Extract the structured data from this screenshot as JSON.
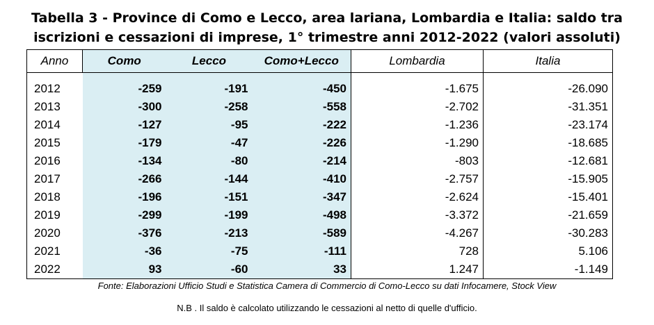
{
  "title_line1": "Tabella 3 - Province di Como e Lecco, area lariana, Lombardia e Italia: saldo tra",
  "title_line2": "iscrizioni e cessazioni di imprese, 1° trimestre anni 2012-2022 (valori assoluti)",
  "headers": [
    "Anno",
    "Como",
    "Lecco",
    "Como+Lecco",
    "Lombardia",
    "Italia"
  ],
  "rows": [
    [
      "2012",
      "-259",
      "-191",
      "-450",
      "-1.675",
      "-26.090"
    ],
    [
      "2013",
      "-300",
      "-258",
      "-558",
      "-2.702",
      "-31.351"
    ],
    [
      "2014",
      "-127",
      "-95",
      "-222",
      "-1.236",
      "-23.174"
    ],
    [
      "2015",
      "-179",
      "-47",
      "-226",
      "-1.290",
      "-18.685"
    ],
    [
      "2016",
      "-134",
      "-80",
      "-214",
      "-803",
      "-12.681"
    ],
    [
      "2017",
      "-266",
      "-144",
      "-410",
      "-2.757",
      "-15.905"
    ],
    [
      "2018",
      "-196",
      "-151",
      "-347",
      "-2.624",
      "-15.401"
    ],
    [
      "2019",
      "-299",
      "-199",
      "-498",
      "-3.372",
      "-21.659"
    ],
    [
      "2020",
      "-376",
      "-213",
      "-589",
      "-4.267",
      "-30.283"
    ],
    [
      "2021",
      "-36",
      "-75",
      "-111",
      "728",
      "5.106"
    ],
    [
      "2022",
      "93",
      "-60",
      "33",
      "1.247",
      "-1.149"
    ]
  ],
  "source": "Fonte: Elaborazioni Ufficio Studi e Statistica Camera di Commercio di Como-Lecco su dati Infocamere, Stock View",
  "note": "N.B . Il saldo è calcolato utilizzando le cessazioni al netto di quelle d'ufficio.",
  "colors": {
    "shade": "#daeef3"
  }
}
